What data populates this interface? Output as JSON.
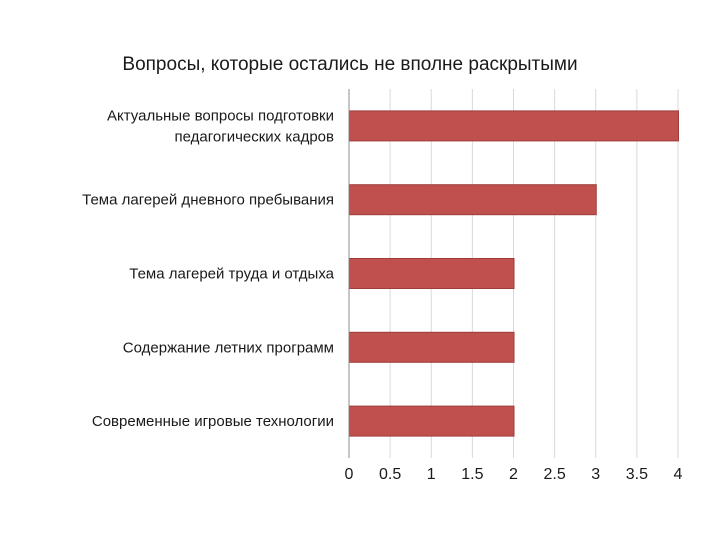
{
  "chart_data": {
    "type": "bar",
    "orientation": "horizontal",
    "title": "Вопросы, которые остались не вполне раскрытыми",
    "categories": [
      [
        "Актуальные вопросы подготовки",
        "педагогических кадров"
      ],
      [
        "Тема лагерей дневного пребывания"
      ],
      [
        "Тема лагерей труда и отдыха"
      ],
      [
        "Содержание летних программ"
      ],
      [
        "Современные игровые технологии"
      ]
    ],
    "values": [
      4,
      3,
      2,
      2,
      2
    ],
    "xlim": [
      0,
      4
    ],
    "ticks": [
      "0",
      "0.5",
      "1",
      "1.5",
      "2",
      "2.5",
      "3",
      "3.5",
      "4"
    ],
    "xlabel": "",
    "ylabel": "",
    "grid": true,
    "legend": "none",
    "bar_color": "#c0504d"
  }
}
